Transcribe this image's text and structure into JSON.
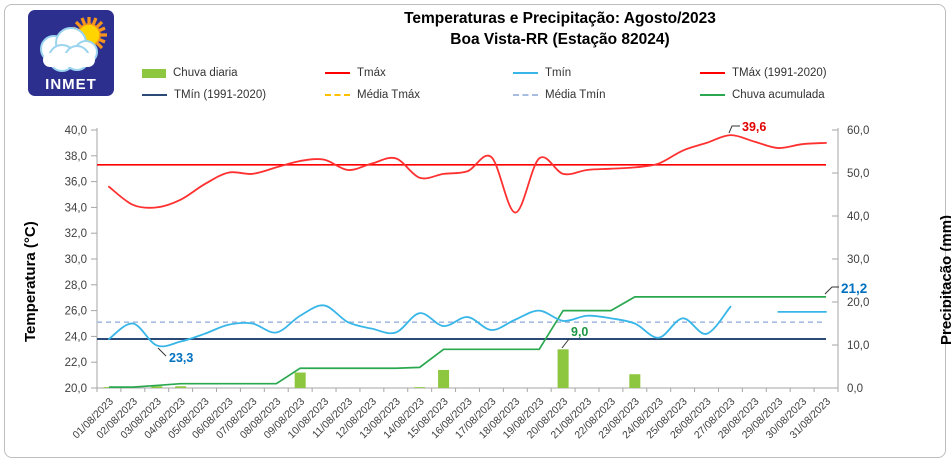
{
  "header": {
    "title_line1": "Temperaturas e Precipitação: Agosto/2023",
    "title_line2": "Boa Vista-RR (Estação 82024)",
    "logo_text": "INMET"
  },
  "colors": {
    "tmax_line": "#ff3030",
    "tmax_ref": "#fe0000",
    "tmin_line": "#38b6e8",
    "tmin_ref": "#2c4a78",
    "media_tmin_dash": "#a6bce0",
    "media_tmax_dash": "#ffc000",
    "rain_bar": "#8dc63f",
    "rain_cum": "#2aa84f",
    "axis": "#a6a6a6",
    "tick_text": "#404040",
    "ann_blue": "#0070c0",
    "ann_green": "#1d9643",
    "ann_red": "#e00000"
  },
  "legend": {
    "items": [
      {
        "label": "Chuva diaria",
        "swatch": "bar",
        "color": "#8dc63f"
      },
      {
        "label": "Tmáx",
        "swatch": "line",
        "color": "#fe0000"
      },
      {
        "label": "Tmín",
        "swatch": "line",
        "color": "#38b6e8"
      },
      {
        "label": "TMáx (1991-2020)",
        "swatch": "line",
        "color": "#fe0000"
      },
      {
        "label": "TMín (1991-2020)",
        "swatch": "line",
        "color": "#2c4a78"
      },
      {
        "label": "Média Tmáx",
        "swatch": "dash",
        "color": "#ffc000"
      },
      {
        "label": "Média Tmín",
        "swatch": "dash",
        "color": "#a6bce0"
      },
      {
        "label": "Chuva acumulada",
        "swatch": "line",
        "color": "#2aa84f"
      }
    ]
  },
  "chart_data": {
    "type": "combo-bar-line",
    "title": "Temperaturas e Precipitação: Agosto/2023 — Boa Vista-RR (Estação 82024)",
    "x_labels": [
      "01/08/2023",
      "02/08/2023",
      "03/08/2023",
      "04/08/2023",
      "05/08/2023",
      "06/08/2023",
      "07/08/2023",
      "08/08/2023",
      "09/08/2023",
      "10/08/2023",
      "11/08/2023",
      "12/08/2023",
      "13/08/2023",
      "14/08/2023",
      "15/08/2023",
      "16/08/2023",
      "17/08/2023",
      "18/08/2023",
      "19/08/2023",
      "20/08/2023",
      "21/08/2023",
      "22/08/2023",
      "23/08/2023",
      "24/08/2023",
      "25/08/2023",
      "26/08/2023",
      "27/08/2023",
      "28/08/2023",
      "29/08/2023",
      "30/08/2023",
      "31/08/2023"
    ],
    "y_left": {
      "label": "Temperatura (°C)",
      "min": 20,
      "max": 40,
      "step": 2,
      "ticks": [
        "40,0",
        "38,0",
        "36,0",
        "34,0",
        "32,0",
        "30,0",
        "28,0",
        "26,0",
        "24,0",
        "22,0",
        "20,0"
      ]
    },
    "y_right": {
      "label": "Precipitação (mm)",
      "min": 0,
      "max": 60,
      "step": 10,
      "ticks": [
        "60,0",
        "50,0",
        "40,0",
        "30,0",
        "20,0",
        "10,0",
        "0,0"
      ]
    },
    "grid": false,
    "legend_position": "top",
    "series": [
      {
        "name": "Chuva diaria",
        "type": "bar",
        "axis": "right",
        "color": "#8dc63f",
        "values": [
          0.2,
          0,
          0.4,
          0.4,
          0,
          0,
          0,
          0,
          3.6,
          0,
          0,
          0,
          0,
          0.2,
          4.2,
          0,
          0,
          0,
          0,
          9.0,
          0,
          0,
          3.2,
          0,
          0,
          0,
          0,
          0,
          0,
          0,
          0
        ]
      },
      {
        "name": "Tmáx",
        "type": "line-smooth",
        "axis": "left",
        "color": "#ff3030",
        "values": [
          35.6,
          34.2,
          34.0,
          34.6,
          35.8,
          36.7,
          36.6,
          37.1,
          37.6,
          37.7,
          36.9,
          37.4,
          37.8,
          36.3,
          36.6,
          36.8,
          37.9,
          33.6,
          37.8,
          36.6,
          36.9,
          37.0,
          37.1,
          37.4,
          38.4,
          39.0,
          39.6,
          39.1,
          38.6,
          38.9,
          39.0
        ]
      },
      {
        "name": "Tmín",
        "type": "line-smooth",
        "axis": "left",
        "color": "#38b6e8",
        "values": [
          23.8,
          25.0,
          23.3,
          23.6,
          24.2,
          24.9,
          25.0,
          24.3,
          25.6,
          26.4,
          25.1,
          24.6,
          24.3,
          25.8,
          24.8,
          25.5,
          24.5,
          25.3,
          26.0,
          25.2,
          25.6,
          25.4,
          25.0,
          23.9,
          25.4,
          24.2,
          26.3,
          null,
          25.9,
          25.9,
          25.9
        ]
      },
      {
        "name": "Chuva acumulada",
        "type": "line",
        "axis": "right",
        "color": "#2aa84f",
        "values": [
          0.2,
          0.2,
          0.6,
          1.0,
          1.0,
          1.0,
          1.0,
          1.0,
          4.6,
          4.6,
          4.6,
          4.6,
          4.6,
          4.8,
          9.0,
          9.0,
          9.0,
          9.0,
          9.0,
          18.0,
          18.0,
          18.0,
          21.2,
          21.2,
          21.2,
          21.2,
          21.2,
          21.2,
          21.2,
          21.2,
          21.2
        ]
      }
    ],
    "reference_lines": [
      {
        "name": "TMáx (1991-2020)",
        "axis": "left",
        "value": 37.3,
        "color": "#fe0000",
        "style": "solid"
      },
      {
        "name": "TMín (1991-2020)",
        "axis": "left",
        "value": 23.8,
        "color": "#2c4a78",
        "style": "solid"
      },
      {
        "name": "Média Tmín",
        "axis": "left",
        "value": 25.1,
        "color": "#a6bce0",
        "style": "dashed"
      }
    ],
    "annotations": [
      {
        "text": "23,3",
        "color": "#0070c0",
        "refers_to": "Tmín min, 03/08"
      },
      {
        "text": "9,0",
        "color": "#1d9643",
        "refers_to": "Chuva diaria max, 20/08"
      },
      {
        "text": "39,6",
        "color": "#e00000",
        "refers_to": "Tmáx max, 27/08"
      },
      {
        "text": "21,2",
        "color": "#0070c0",
        "refers_to": "Chuva acumulada final, 31/08"
      }
    ]
  }
}
